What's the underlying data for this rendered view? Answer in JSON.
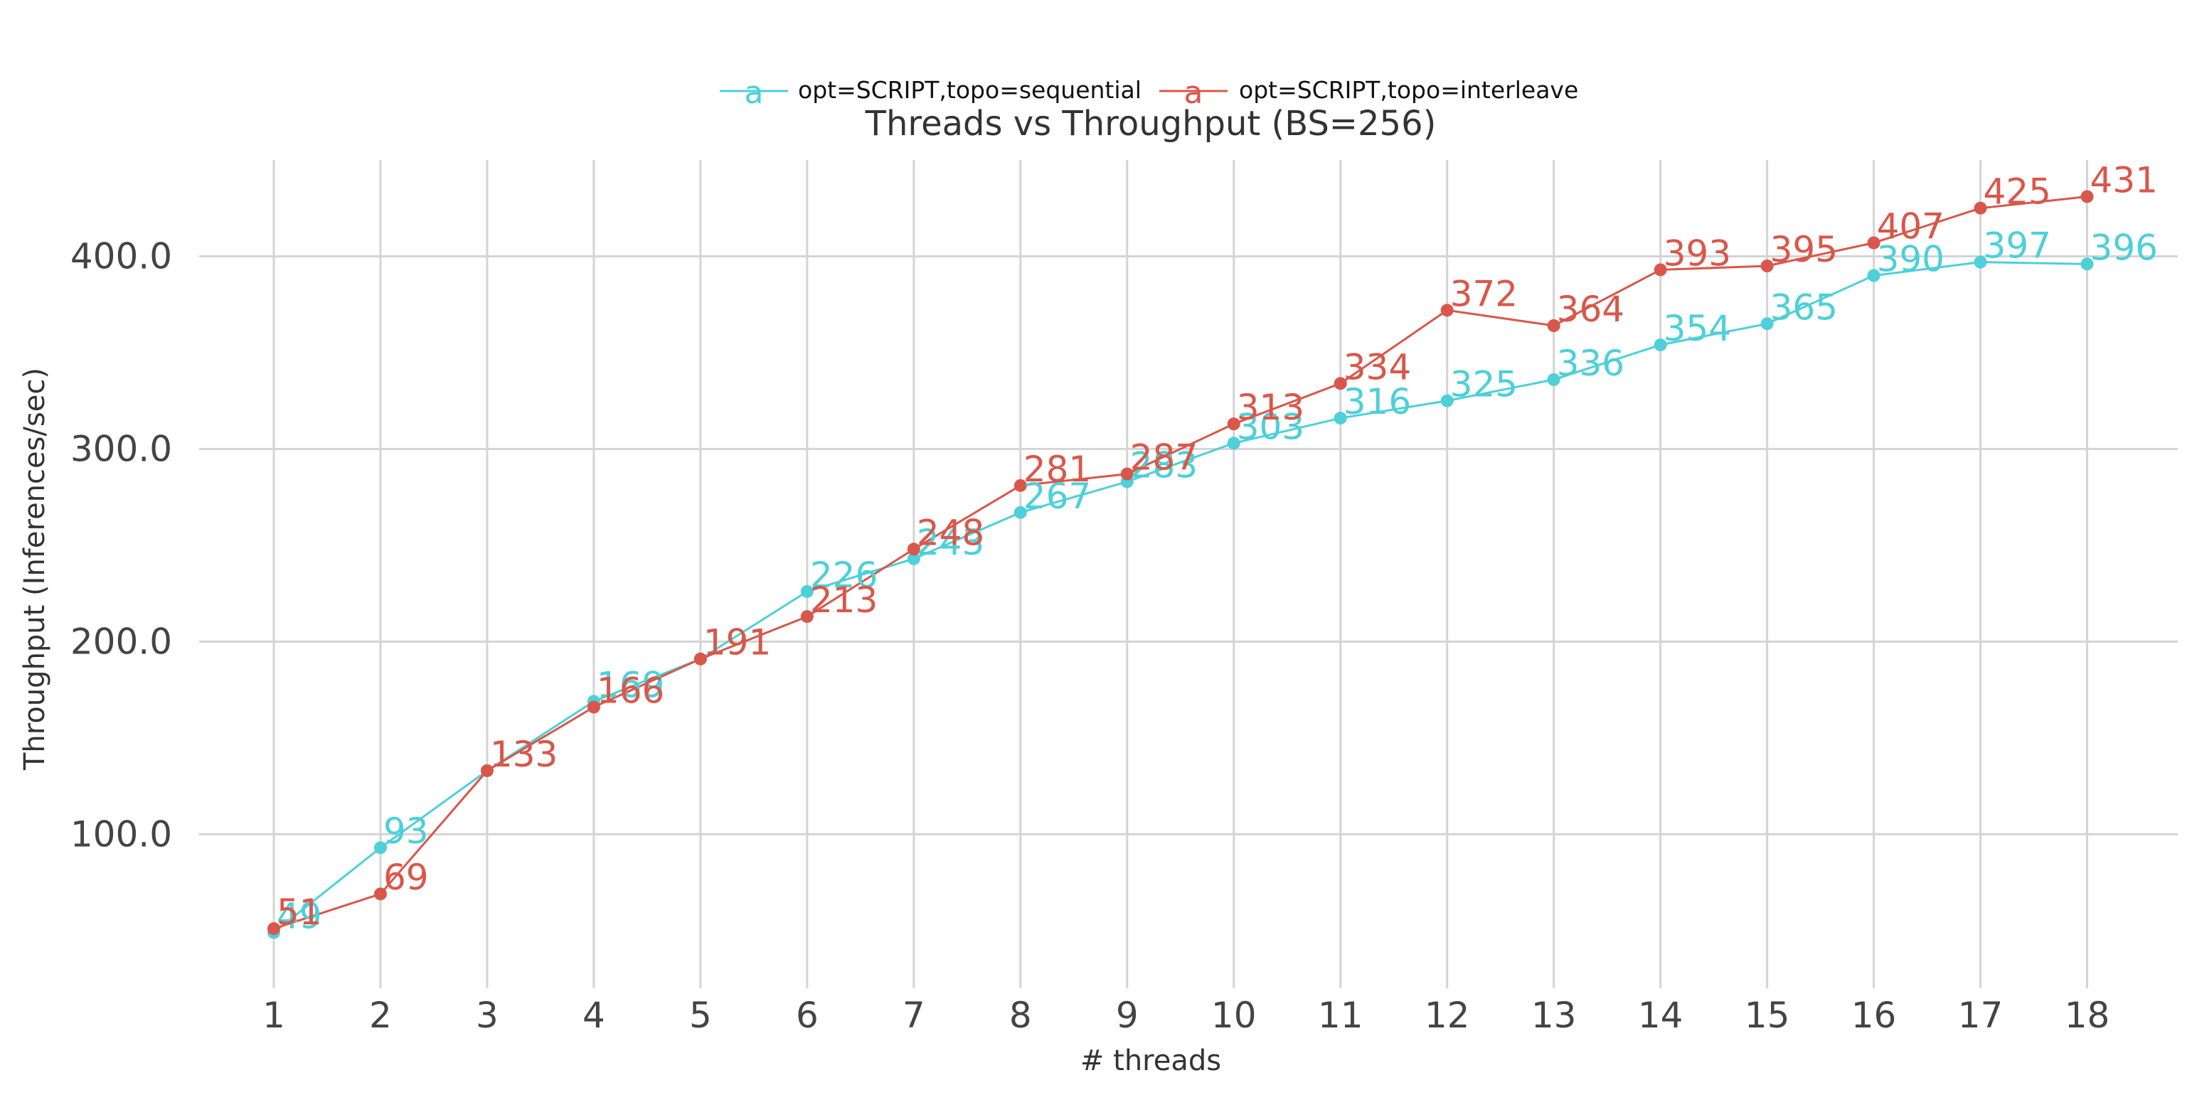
{
  "chart_data": {
    "type": "line",
    "title": "Threads vs Throughput (BS=256)",
    "xlabel": "# threads",
    "ylabel": "Throughput (Inferences/sec)",
    "x": [
      1,
      2,
      3,
      4,
      5,
      6,
      7,
      8,
      9,
      10,
      11,
      12,
      13,
      14,
      15,
      16,
      17,
      18
    ],
    "xlim": [
      0.3,
      18.85
    ],
    "ylim": [
      20,
      450
    ],
    "yticks": [
      100,
      200,
      300,
      400
    ],
    "ytick_labels": [
      "100.0",
      "200.0",
      "300.0",
      "400.0"
    ],
    "grid": true,
    "legend_position": "top-center",
    "legend_marker_text": "a",
    "series": [
      {
        "name": "opt=SCRIPT,topo=sequential",
        "color": "#4dd0d8",
        "values": [
          49,
          93,
          133,
          169,
          191,
          226,
          243,
          267,
          283,
          303,
          316,
          325,
          336,
          354,
          365,
          390,
          397,
          396
        ]
      },
      {
        "name": "opt=SCRIPT,topo=interleave",
        "color": "#d9574a",
        "values": [
          51,
          69,
          133,
          166,
          191,
          213,
          248,
          281,
          287,
          313,
          334,
          372,
          364,
          393,
          395,
          407,
          425,
          431
        ]
      }
    ]
  }
}
